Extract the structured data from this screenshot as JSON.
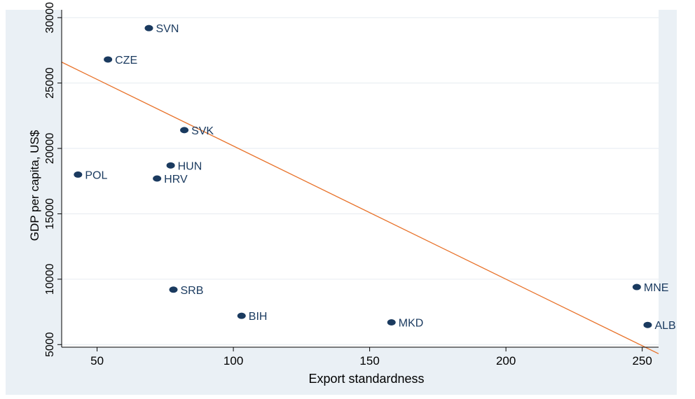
{
  "chart_data": {
    "type": "scatter",
    "title": "",
    "xlabel": "Export standardness",
    "ylabel": "GDP per capita, US$",
    "xlim": [
      37,
      256
    ],
    "ylim": [
      4800,
      30600
    ],
    "xticks": [
      50,
      100,
      150,
      200,
      250
    ],
    "yticks": [
      5000,
      10000,
      15000,
      20000,
      25000,
      30000
    ],
    "grid": "horizontal",
    "points": [
      {
        "label": "SVN",
        "x": 69,
        "y": 29200
      },
      {
        "label": "CZE",
        "x": 54,
        "y": 26800
      },
      {
        "label": "SVK",
        "x": 82,
        "y": 21400
      },
      {
        "label": "HUN",
        "x": 77,
        "y": 18700
      },
      {
        "label": "POL",
        "x": 43,
        "y": 18000
      },
      {
        "label": "HRV",
        "x": 72,
        "y": 17700
      },
      {
        "label": "SRB",
        "x": 78,
        "y": 9200
      },
      {
        "label": "BIH",
        "x": 103,
        "y": 7200
      },
      {
        "label": "MKD",
        "x": 158,
        "y": 6700
      },
      {
        "label": "MNE",
        "x": 248,
        "y": 9400
      },
      {
        "label": "ALB",
        "x": 252,
        "y": 6500
      }
    ],
    "fit_line": {
      "x": [
        37,
        256
      ],
      "y": [
        26600,
        4300
      ]
    },
    "colors": {
      "points": "#1a3a5f",
      "fit_line": "#e8722a",
      "grid": "#e6ebf0",
      "frame_bg": "#eaf0f5",
      "plot_bg": "#ffffff"
    }
  }
}
